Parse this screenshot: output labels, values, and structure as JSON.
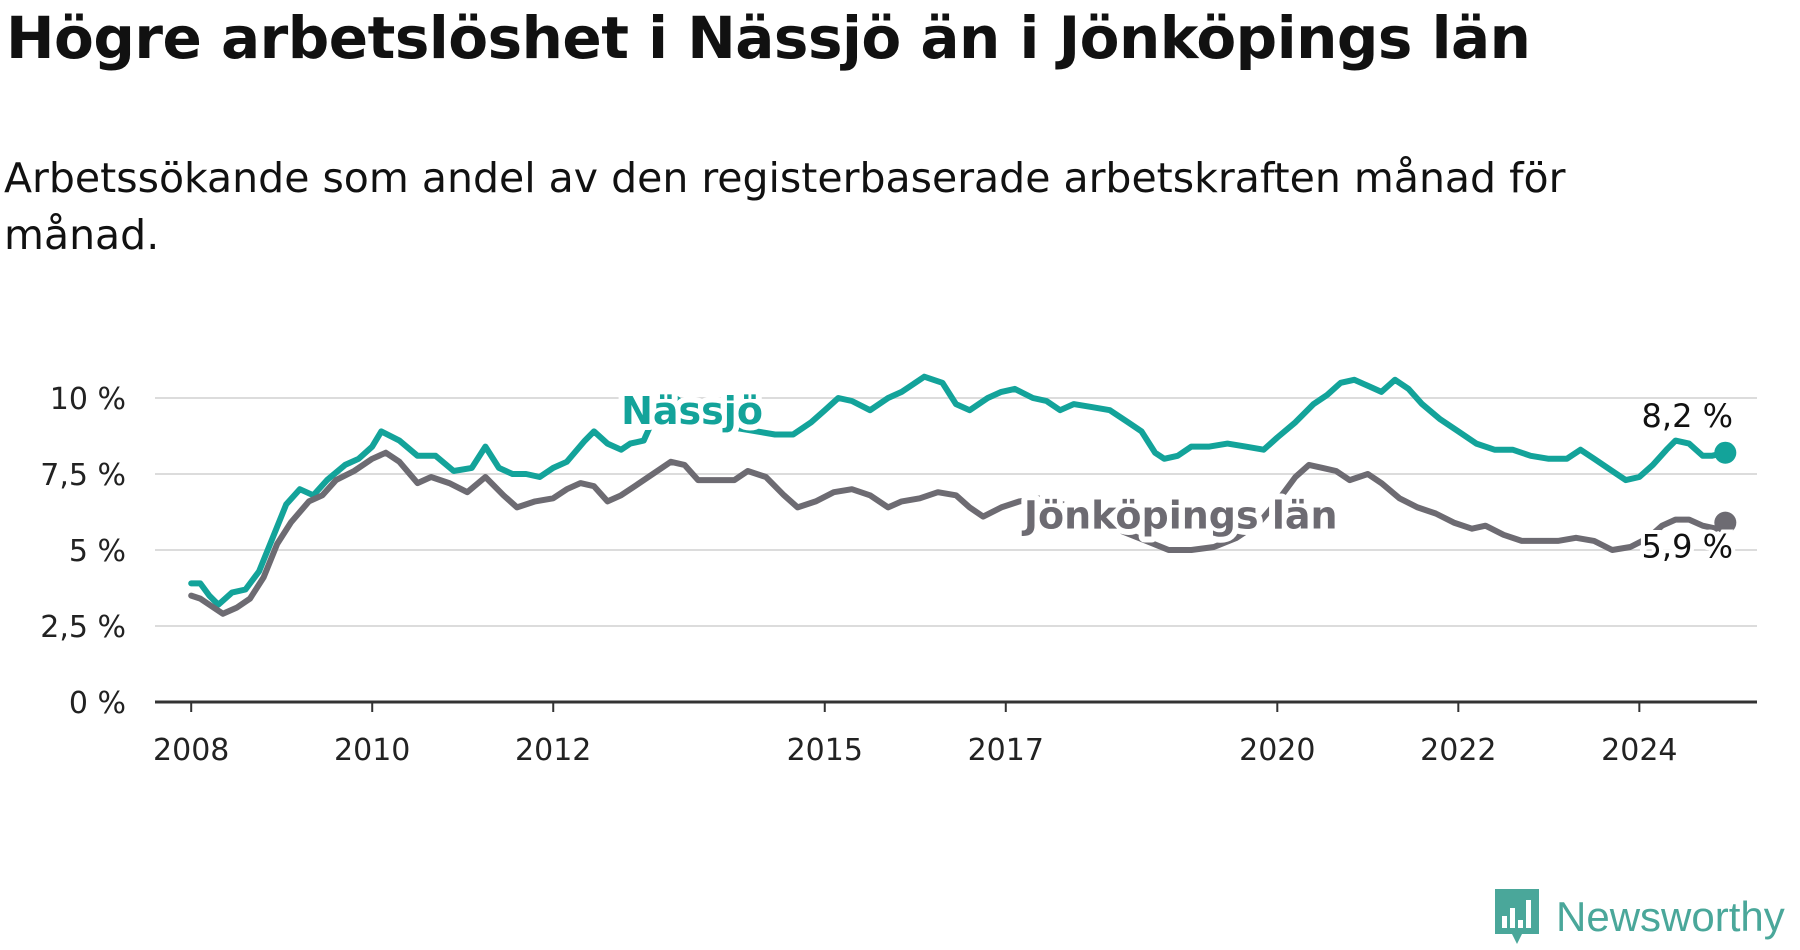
{
  "title": "Högre arbetslöshet i Nässjö än i Jönköpings län",
  "subtitle": "Arbetssökande som andel av den registerbaserade arbetskraften månad för månad.",
  "brand": {
    "name": "Newsworthy",
    "color": "#4aa79a",
    "logo_icon": "bar-chart-speech-bubble-icon"
  },
  "chart_data": {
    "type": "line",
    "title": "",
    "xlabel": "",
    "ylabel": "",
    "x_range": [
      2007.6,
      2025.3
    ],
    "ylim": [
      0,
      10
    ],
    "y_ticks": [
      0,
      2.5,
      5,
      7.5,
      10
    ],
    "y_tick_labels": [
      "0 %",
      "2,5 %",
      "5 %",
      "7,5 %",
      "10 %"
    ],
    "x_ticks": [
      2008,
      2010,
      2012,
      2015,
      2017,
      2020,
      2022,
      2024
    ],
    "x_tick_labels": [
      "2008",
      "2010",
      "2012",
      "2015",
      "2017",
      "2020",
      "2022",
      "2024"
    ],
    "grid": true,
    "series": [
      {
        "name": "Nässjö",
        "color": "#13a39a",
        "end_label": "8,2 %",
        "points": [
          [
            2008.0,
            3.9
          ],
          [
            2008.1,
            3.9
          ],
          [
            2008.2,
            3.5
          ],
          [
            2008.3,
            3.2
          ],
          [
            2008.45,
            3.6
          ],
          [
            2008.6,
            3.7
          ],
          [
            2008.75,
            4.3
          ],
          [
            2008.9,
            5.4
          ],
          [
            2009.05,
            6.5
          ],
          [
            2009.2,
            7.0
          ],
          [
            2009.35,
            6.8
          ],
          [
            2009.5,
            7.3
          ],
          [
            2009.7,
            7.8
          ],
          [
            2009.85,
            8.0
          ],
          [
            2010.0,
            8.4
          ],
          [
            2010.1,
            8.9
          ],
          [
            2010.3,
            8.6
          ],
          [
            2010.5,
            8.1
          ],
          [
            2010.7,
            8.1
          ],
          [
            2010.9,
            7.6
          ],
          [
            2011.1,
            7.7
          ],
          [
            2011.25,
            8.4
          ],
          [
            2011.4,
            7.7
          ],
          [
            2011.55,
            7.5
          ],
          [
            2011.7,
            7.5
          ],
          [
            2011.85,
            7.4
          ],
          [
            2012.0,
            7.7
          ],
          [
            2012.15,
            7.9
          ],
          [
            2012.35,
            8.6
          ],
          [
            2012.45,
            8.9
          ],
          [
            2012.6,
            8.5
          ],
          [
            2012.75,
            8.3
          ],
          [
            2012.85,
            8.5
          ],
          [
            2013.0,
            8.6
          ],
          [
            2013.15,
            9.6
          ],
          [
            2013.3,
            10.1
          ],
          [
            2013.45,
            9.8
          ],
          [
            2013.65,
            9.4
          ],
          [
            2013.85,
            9.3
          ],
          [
            2014.05,
            9.0
          ],
          [
            2014.25,
            8.9
          ],
          [
            2014.45,
            8.8
          ],
          [
            2014.65,
            8.8
          ],
          [
            2014.85,
            9.2
          ],
          [
            2015.0,
            9.6
          ],
          [
            2015.15,
            10.0
          ],
          [
            2015.3,
            9.9
          ],
          [
            2015.5,
            9.6
          ],
          [
            2015.7,
            10.0
          ],
          [
            2015.85,
            10.2
          ],
          [
            2016.0,
            10.5
          ],
          [
            2016.1,
            10.7
          ],
          [
            2016.3,
            10.5
          ],
          [
            2016.45,
            9.8
          ],
          [
            2016.6,
            9.6
          ],
          [
            2016.8,
            10.0
          ],
          [
            2016.95,
            10.2
          ],
          [
            2017.1,
            10.3
          ],
          [
            2017.3,
            10.0
          ],
          [
            2017.45,
            9.9
          ],
          [
            2017.6,
            9.6
          ],
          [
            2017.75,
            9.8
          ],
          [
            2017.95,
            9.7
          ],
          [
            2018.15,
            9.6
          ],
          [
            2018.35,
            9.2
          ],
          [
            2018.5,
            8.9
          ],
          [
            2018.65,
            8.2
          ],
          [
            2018.75,
            8.0
          ],
          [
            2018.9,
            8.1
          ],
          [
            2019.05,
            8.4
          ],
          [
            2019.25,
            8.4
          ],
          [
            2019.45,
            8.5
          ],
          [
            2019.65,
            8.4
          ],
          [
            2019.85,
            8.3
          ],
          [
            2020.0,
            8.7
          ],
          [
            2020.2,
            9.2
          ],
          [
            2020.4,
            9.8
          ],
          [
            2020.55,
            10.1
          ],
          [
            2020.7,
            10.5
          ],
          [
            2020.85,
            10.6
          ],
          [
            2021.0,
            10.4
          ],
          [
            2021.15,
            10.2
          ],
          [
            2021.3,
            10.6
          ],
          [
            2021.45,
            10.3
          ],
          [
            2021.6,
            9.8
          ],
          [
            2021.8,
            9.3
          ],
          [
            2022.0,
            8.9
          ],
          [
            2022.2,
            8.5
          ],
          [
            2022.4,
            8.3
          ],
          [
            2022.6,
            8.3
          ],
          [
            2022.8,
            8.1
          ],
          [
            2023.0,
            8.0
          ],
          [
            2023.2,
            8.0
          ],
          [
            2023.35,
            8.3
          ],
          [
            2023.5,
            8.0
          ],
          [
            2023.7,
            7.6
          ],
          [
            2023.85,
            7.3
          ],
          [
            2024.0,
            7.4
          ],
          [
            2024.15,
            7.8
          ],
          [
            2024.3,
            8.3
          ],
          [
            2024.4,
            8.6
          ],
          [
            2024.55,
            8.5
          ],
          [
            2024.7,
            8.1
          ],
          [
            2024.8,
            8.1
          ],
          [
            2024.95,
            8.2
          ]
        ]
      },
      {
        "name": "Jönköpings län",
        "color": "#6d6b72",
        "end_label": "5,9 %",
        "points": [
          [
            2008.0,
            3.5
          ],
          [
            2008.1,
            3.4
          ],
          [
            2008.2,
            3.2
          ],
          [
            2008.35,
            2.9
          ],
          [
            2008.5,
            3.1
          ],
          [
            2008.65,
            3.4
          ],
          [
            2008.8,
            4.1
          ],
          [
            2008.95,
            5.2
          ],
          [
            2009.1,
            5.9
          ],
          [
            2009.3,
            6.6
          ],
          [
            2009.45,
            6.8
          ],
          [
            2009.6,
            7.3
          ],
          [
            2009.8,
            7.6
          ],
          [
            2010.0,
            8.0
          ],
          [
            2010.15,
            8.2
          ],
          [
            2010.3,
            7.9
          ],
          [
            2010.5,
            7.2
          ],
          [
            2010.65,
            7.4
          ],
          [
            2010.85,
            7.2
          ],
          [
            2011.05,
            6.9
          ],
          [
            2011.25,
            7.4
          ],
          [
            2011.45,
            6.8
          ],
          [
            2011.6,
            6.4
          ],
          [
            2011.8,
            6.6
          ],
          [
            2012.0,
            6.7
          ],
          [
            2012.15,
            7.0
          ],
          [
            2012.3,
            7.2
          ],
          [
            2012.45,
            7.1
          ],
          [
            2012.6,
            6.6
          ],
          [
            2012.75,
            6.8
          ],
          [
            2012.9,
            7.1
          ],
          [
            2013.1,
            7.5
          ],
          [
            2013.3,
            7.9
          ],
          [
            2013.45,
            7.8
          ],
          [
            2013.6,
            7.3
          ],
          [
            2013.8,
            7.3
          ],
          [
            2014.0,
            7.3
          ],
          [
            2014.15,
            7.6
          ],
          [
            2014.35,
            7.4
          ],
          [
            2014.55,
            6.8
          ],
          [
            2014.7,
            6.4
          ],
          [
            2014.9,
            6.6
          ],
          [
            2015.1,
            6.9
          ],
          [
            2015.3,
            7.0
          ],
          [
            2015.5,
            6.8
          ],
          [
            2015.7,
            6.4
          ],
          [
            2015.85,
            6.6
          ],
          [
            2016.05,
            6.7
          ],
          [
            2016.25,
            6.9
          ],
          [
            2016.45,
            6.8
          ],
          [
            2016.6,
            6.4
          ],
          [
            2016.75,
            6.1
          ],
          [
            2016.95,
            6.4
          ],
          [
            2017.15,
            6.6
          ],
          [
            2017.35,
            6.7
          ],
          [
            2017.55,
            6.6
          ],
          [
            2017.8,
            6.3
          ],
          [
            2018.05,
            6.0
          ],
          [
            2018.3,
            5.6
          ],
          [
            2018.55,
            5.3
          ],
          [
            2018.8,
            5.0
          ],
          [
            2019.05,
            5.0
          ],
          [
            2019.3,
            5.1
          ],
          [
            2019.55,
            5.4
          ],
          [
            2019.8,
            5.9
          ],
          [
            2020.0,
            6.6
          ],
          [
            2020.2,
            7.4
          ],
          [
            2020.35,
            7.8
          ],
          [
            2020.5,
            7.7
          ],
          [
            2020.65,
            7.6
          ],
          [
            2020.8,
            7.3
          ],
          [
            2021.0,
            7.5
          ],
          [
            2021.15,
            7.2
          ],
          [
            2021.35,
            6.7
          ],
          [
            2021.55,
            6.4
          ],
          [
            2021.75,
            6.2
          ],
          [
            2021.95,
            5.9
          ],
          [
            2022.15,
            5.7
          ],
          [
            2022.3,
            5.8
          ],
          [
            2022.5,
            5.5
          ],
          [
            2022.7,
            5.3
          ],
          [
            2022.9,
            5.3
          ],
          [
            2023.1,
            5.3
          ],
          [
            2023.3,
            5.4
          ],
          [
            2023.5,
            5.3
          ],
          [
            2023.7,
            5.0
          ],
          [
            2023.9,
            5.1
          ],
          [
            2024.1,
            5.4
          ],
          [
            2024.25,
            5.8
          ],
          [
            2024.4,
            6.0
          ],
          [
            2024.55,
            6.0
          ],
          [
            2024.7,
            5.8
          ],
          [
            2024.85,
            5.7
          ],
          [
            2024.95,
            5.9
          ]
        ]
      }
    ]
  }
}
